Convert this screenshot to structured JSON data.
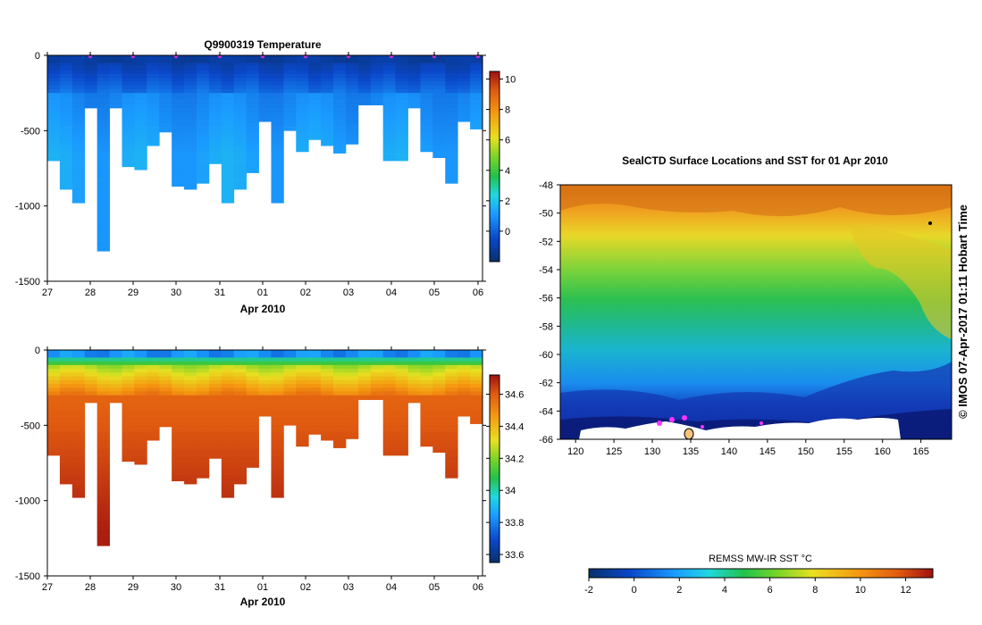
{
  "chart_data": [
    {
      "type": "heatmap",
      "title": "Q9900319  Temperature",
      "xlabel": "Apr 2010",
      "x_ticks": [
        "27",
        "28",
        "29",
        "30",
        "31",
        "01",
        "02",
        "03",
        "04",
        "05",
        "06"
      ],
      "y_ticks": [
        "0",
        "-500",
        "-1000",
        "-1500"
      ],
      "ylim": [
        -1500,
        0
      ],
      "variable": "temperature",
      "colorbar_ticks": [
        "10",
        "8",
        "6",
        "4",
        "2",
        "0"
      ],
      "colorbar_range": [
        -2,
        10.5
      ],
      "profile_depths_m": [
        700,
        890,
        980,
        350,
        1300,
        350,
        740,
        760,
        600,
        510,
        870,
        890,
        850,
        720,
        980,
        890,
        780,
        440,
        980,
        500,
        640,
        560,
        600,
        650,
        590,
        330,
        330,
        700,
        700,
        350,
        640,
        680,
        850,
        440,
        490
      ],
      "surface_markers": 11
    },
    {
      "type": "heatmap",
      "title": "",
      "xlabel": "Apr 2010",
      "x_ticks": [
        "27",
        "28",
        "29",
        "30",
        "31",
        "01",
        "02",
        "03",
        "04",
        "05",
        "06"
      ],
      "y_ticks": [
        "0",
        "-500",
        "-1000",
        "-1500"
      ],
      "ylim": [
        -1500,
        0
      ],
      "variable": "salinity",
      "colorbar_ticks": [
        "34.6",
        "34.4",
        "34.2",
        "34",
        "33.8",
        "33.6"
      ],
      "colorbar_range": [
        33.55,
        34.72
      ],
      "profile_depths_m": [
        700,
        890,
        980,
        350,
        1300,
        350,
        740,
        760,
        600,
        510,
        870,
        890,
        850,
        720,
        980,
        890,
        780,
        440,
        980,
        500,
        640,
        560,
        600,
        650,
        590,
        330,
        330,
        700,
        700,
        350,
        640,
        680,
        850,
        440,
        490
      ]
    },
    {
      "type": "heatmap",
      "title": "SealCTD Surface Locations and SST for 01 Apr 2010",
      "variable": "sea surface temperature map",
      "x_ticks": [
        "120",
        "125",
        "130",
        "135",
        "140",
        "145",
        "150",
        "155",
        "160",
        "165"
      ],
      "y_ticks": [
        "-48",
        "-50",
        "-52",
        "-54",
        "-56",
        "-58",
        "-60",
        "-62",
        "-64",
        "-66"
      ],
      "xlim": [
        118,
        169
      ],
      "ylim": [
        -66,
        -48
      ],
      "colorbar_label": "REMSS MW-IR SST °C",
      "colorbar_ticks": [
        "-2",
        "0",
        "2",
        "4",
        "6",
        "8",
        "10",
        "12"
      ],
      "colorbar_range": [
        -2,
        13.2
      ],
      "credit": "© IMOS 07-Apr-2017 01:11 Hobart Time"
    }
  ]
}
